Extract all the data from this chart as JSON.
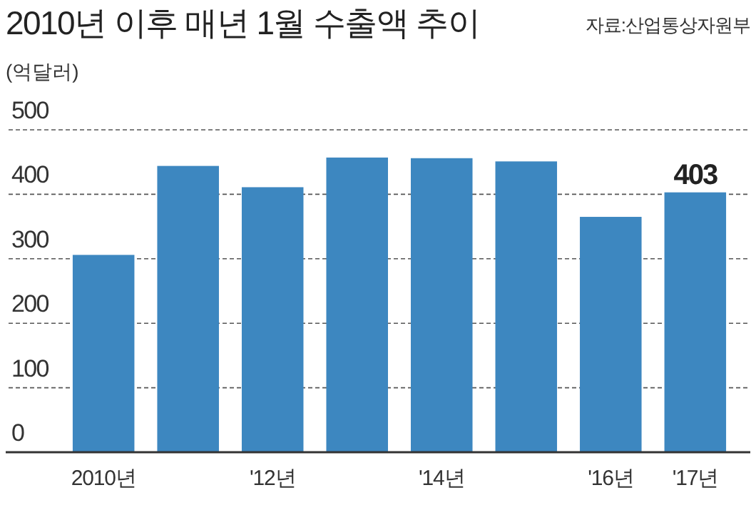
{
  "chart_data": {
    "type": "bar",
    "title": "2010년 이후 매년 1월 수출액 추이",
    "ylabel": "(억달러)",
    "annotations": [
      "자료:산업통상자원부"
    ],
    "categories": [
      "2010년",
      null,
      "'12년",
      null,
      "'14년",
      null,
      "'16년",
      "'17년"
    ],
    "values": [
      306,
      444,
      411,
      457,
      456,
      451,
      365,
      403
    ],
    "value_labels": [
      null,
      null,
      null,
      null,
      null,
      null,
      null,
      "403"
    ],
    "color": "#3d87c0",
    "ylim": [
      0,
      500
    ],
    "yticks": [
      0,
      100,
      200,
      300,
      400,
      500
    ],
    "grid": "y"
  }
}
